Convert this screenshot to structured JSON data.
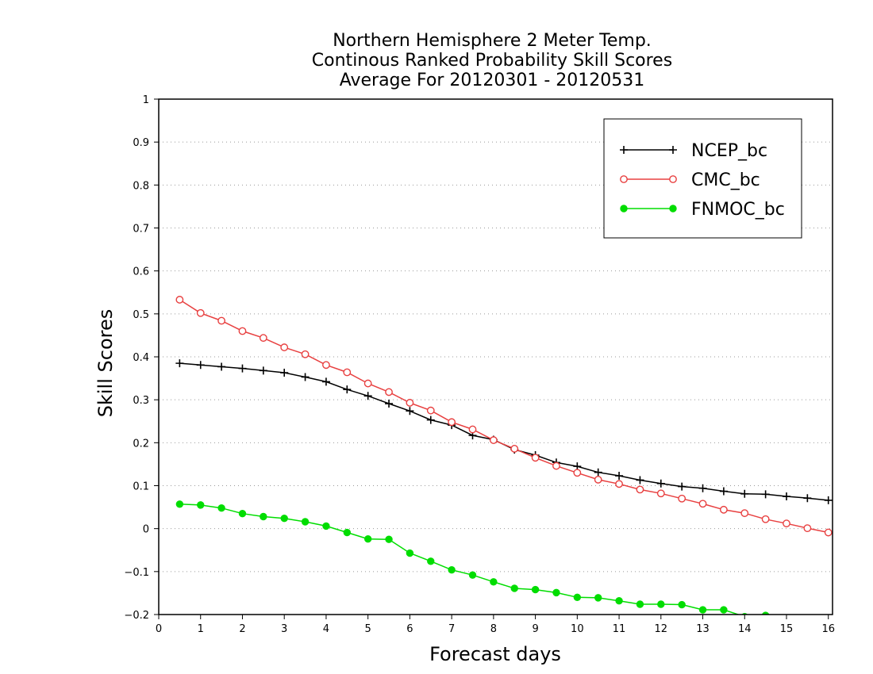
{
  "chart_data": {
    "type": "line",
    "title_lines": [
      "Northern Hemisphere 2 Meter Temp.",
      "Continous Ranked Probability Skill Scores",
      "Average For 20120301 - 20120531"
    ],
    "xlabel": "Forecast days",
    "ylabel": "Skill Scores",
    "xlim": [
      0,
      16.1
    ],
    "ylim": [
      -0.2,
      1.0
    ],
    "xticks": [
      "0",
      "1",
      "2",
      "3",
      "4",
      "5",
      "6",
      "7",
      "8",
      "9",
      "10",
      "11",
      "12",
      "13",
      "14",
      "15",
      "16"
    ],
    "yticks": [
      "−0.2",
      "−0.1",
      "0",
      "0.1",
      "0.2",
      "0.3",
      "0.4",
      "0.5",
      "0.6",
      "0.7",
      "0.8",
      "0.9",
      "1"
    ],
    "grid": true,
    "legend_position": "top-right",
    "x": [
      0.5,
      1,
      1.5,
      2,
      2.5,
      3,
      3.5,
      4,
      4.5,
      5,
      5.5,
      6,
      6.5,
      7,
      7.5,
      8,
      8.5,
      9,
      9.5,
      10,
      10.5,
      11,
      11.5,
      12,
      12.5,
      13,
      13.5,
      14,
      14.5,
      15,
      15.5,
      16
    ],
    "series": [
      {
        "name": "NCEP_bc",
        "color": "#000000",
        "marker": "plus",
        "values": [
          0.385,
          0.381,
          0.377,
          0.373,
          0.368,
          0.363,
          0.353,
          0.342,
          0.324,
          0.309,
          0.291,
          0.274,
          0.253,
          0.241,
          0.217,
          0.207,
          0.184,
          0.171,
          0.154,
          0.145,
          0.131,
          0.123,
          0.113,
          0.105,
          0.098,
          0.094,
          0.087,
          0.081,
          0.08,
          0.075,
          0.071,
          0.066
        ]
      },
      {
        "name": "CMC_bc",
        "color": "#e84040",
        "marker": "open-circle",
        "values": [
          0.533,
          0.502,
          0.484,
          0.46,
          0.444,
          0.422,
          0.406,
          0.381,
          0.364,
          0.338,
          0.318,
          0.293,
          0.275,
          0.248,
          0.231,
          0.206,
          0.186,
          0.165,
          0.146,
          0.13,
          0.114,
          0.104,
          0.091,
          0.082,
          0.07,
          0.058,
          0.044,
          0.036,
          0.022,
          0.012,
          0.001,
          -0.009
        ]
      },
      {
        "name": "FNMOC_bc",
        "color": "#00dd00",
        "marker": "filled-circle",
        "values": [
          0.057,
          0.055,
          0.048,
          0.035,
          0.028,
          0.024,
          0.016,
          0.006,
          -0.009,
          -0.024,
          -0.025,
          -0.057,
          -0.076,
          -0.096,
          -0.108,
          -0.124,
          -0.139,
          -0.142,
          -0.149,
          -0.16,
          -0.161,
          -0.168,
          -0.176,
          -0.176,
          -0.177,
          -0.189,
          -0.189,
          -0.205,
          -0.202,
          -0.21,
          -0.215,
          -0.22
        ]
      }
    ]
  }
}
